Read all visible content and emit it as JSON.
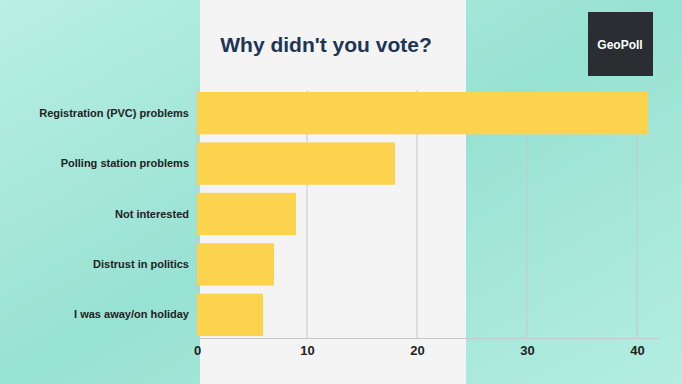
{
  "chart_data": {
    "type": "bar",
    "title": "Why didn't you vote?",
    "annotations": [
      "GeoPoll"
    ],
    "categories": [
      "Registration (PVC) problems",
      "Polling station problems",
      "Not interested",
      "Distrust in politics",
      "I was away/on holiday"
    ],
    "values": [
      41,
      18,
      9,
      7,
      6
    ],
    "color": "#fcd34d",
    "orientation": "horizontal",
    "xlim": [
      0,
      42
    ],
    "xticks": [
      0,
      10,
      20,
      30,
      40
    ],
    "grid": true
  }
}
